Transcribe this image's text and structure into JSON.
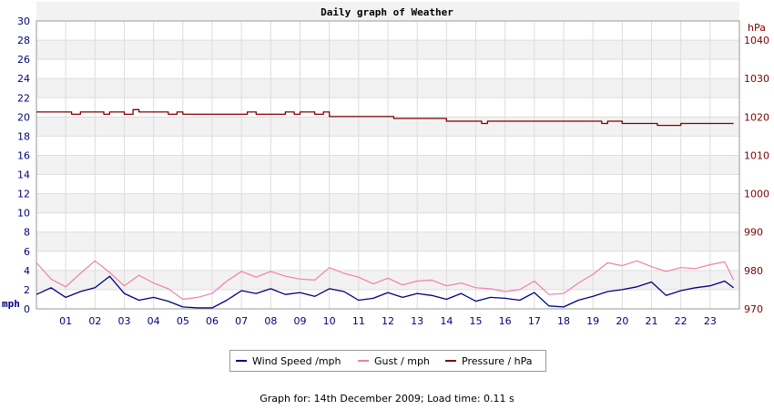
{
  "chart_data": {
    "type": "line",
    "title": "Daily graph of Weather",
    "left_axis": {
      "unit_label": "mph",
      "range": [
        0,
        30
      ],
      "ticks": [
        "0",
        "2",
        "4",
        "6",
        "8",
        "10",
        "12",
        "14",
        "16",
        "18",
        "20",
        "22",
        "24",
        "26",
        "28",
        "30"
      ]
    },
    "right_axis": {
      "unit_label": "hPa",
      "range": [
        970,
        1045
      ],
      "ticks": [
        "970",
        "980",
        "990",
        "1000",
        "1010",
        "1020",
        "1030",
        "1040"
      ]
    },
    "x_axis": {
      "range": [
        0,
        24
      ],
      "ticks": [
        "01",
        "02",
        "03",
        "04",
        "05",
        "06",
        "07",
        "08",
        "09",
        "10",
        "11",
        "12",
        "13",
        "14",
        "15",
        "16",
        "17",
        "18",
        "19",
        "20",
        "21",
        "22",
        "23"
      ]
    },
    "grid": true,
    "series": [
      {
        "name": "Wind Speed /mph",
        "axis": "left",
        "color": "#000080",
        "x": [
          0,
          0.5,
          1,
          1.5,
          2,
          2.5,
          3,
          3.5,
          4,
          4.5,
          5,
          5.5,
          6,
          6.5,
          7,
          7.5,
          8,
          8.5,
          9,
          9.5,
          10,
          10.5,
          11,
          11.5,
          12,
          12.5,
          13,
          13.5,
          14,
          14.5,
          15,
          15.5,
          16,
          16.5,
          17,
          17.5,
          18,
          18.5,
          19,
          19.5,
          20,
          20.5,
          21,
          21.5,
          22,
          22.5,
          23,
          23.5,
          23.8
        ],
        "values": [
          1.5,
          2.2,
          1.2,
          1.8,
          2.2,
          3.4,
          1.6,
          0.9,
          1.2,
          0.8,
          0.2,
          0.1,
          0.1,
          0.9,
          1.9,
          1.6,
          2.1,
          1.5,
          1.7,
          1.3,
          2.1,
          1.8,
          0.9,
          1.1,
          1.7,
          1.2,
          1.6,
          1.4,
          1.0,
          1.6,
          0.8,
          1.2,
          1.1,
          0.9,
          1.7,
          0.3,
          0.2,
          0.9,
          1.3,
          1.8,
          2.0,
          2.3,
          2.8,
          1.4,
          1.9,
          2.2,
          2.4,
          2.9,
          2.2
        ]
      },
      {
        "name": "Gust / mph",
        "axis": "left",
        "color": "#f080a8",
        "x": [
          0,
          0.5,
          1,
          1.5,
          2,
          2.5,
          3,
          3.5,
          4,
          4.5,
          5,
          5.5,
          6,
          6.5,
          7,
          7.5,
          8,
          8.5,
          9,
          9.5,
          10,
          10.5,
          11,
          11.5,
          12,
          12.5,
          13,
          13.5,
          14,
          14.5,
          15,
          15.5,
          16,
          16.5,
          17,
          17.5,
          18,
          18.5,
          19,
          19.5,
          20,
          20.5,
          21,
          21.5,
          22,
          22.5,
          23,
          23.5,
          23.8
        ],
        "values": [
          4.8,
          3.1,
          2.3,
          3.7,
          5.0,
          3.8,
          2.4,
          3.5,
          2.7,
          2.1,
          1.0,
          1.2,
          1.6,
          2.9,
          3.9,
          3.3,
          3.9,
          3.4,
          3.1,
          3.0,
          4.3,
          3.7,
          3.3,
          2.6,
          3.2,
          2.5,
          2.9,
          3.0,
          2.4,
          2.7,
          2.2,
          2.1,
          1.8,
          2.0,
          2.9,
          1.5,
          1.6,
          2.7,
          3.6,
          4.8,
          4.5,
          5.0,
          4.4,
          3.9,
          4.3,
          4.2,
          4.6,
          4.9,
          3.0
        ]
      },
      {
        "name": "Pressure / hPa",
        "axis": "right",
        "color": "#800000",
        "x": [
          0,
          1,
          1.2,
          1.5,
          2,
          2.3,
          2.5,
          3,
          3.3,
          3.5,
          4,
          4.5,
          4.8,
          5,
          6,
          7,
          7.2,
          7.5,
          8,
          8.5,
          8.8,
          9,
          9.5,
          9.8,
          10,
          10.3,
          11,
          12,
          12.2,
          13,
          13.8,
          14,
          15,
          15.2,
          15.4,
          16,
          17,
          18,
          19,
          19.3,
          19.5,
          20,
          21,
          21.2,
          21.6,
          22,
          23,
          23.8
        ],
        "values": [
          1021.3,
          1021.3,
          1020.7,
          1021.3,
          1021.3,
          1020.7,
          1021.3,
          1020.7,
          1021.9,
          1021.3,
          1021.3,
          1020.7,
          1021.3,
          1020.7,
          1020.7,
          1020.7,
          1021.3,
          1020.7,
          1020.7,
          1021.3,
          1020.7,
          1021.3,
          1020.7,
          1021.3,
          1020.1,
          1020.1,
          1020.1,
          1020.1,
          1019.6,
          1019.6,
          1019.6,
          1018.9,
          1018.9,
          1018.3,
          1018.9,
          1018.9,
          1018.9,
          1018.9,
          1018.9,
          1018.3,
          1018.9,
          1018.3,
          1018.3,
          1017.8,
          1017.8,
          1018.3,
          1018.3,
          1018.3
        ]
      }
    ]
  },
  "legend": {
    "items": [
      "Wind Speed /mph",
      "Gust / mph",
      "Pressure / hPa"
    ]
  },
  "footer": "Graph for: 14th December 2009; Load time: 0.11 s"
}
